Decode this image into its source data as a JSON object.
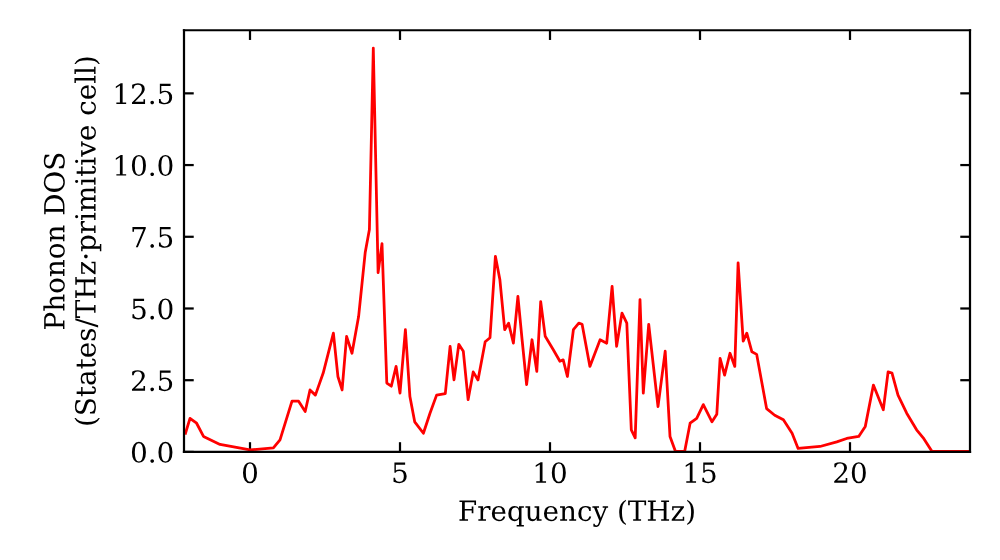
{
  "chart_data": {
    "type": "line",
    "xlabel": "Frequency (THz)",
    "ylabel": "Phonon DOS\n(States/THz·primitive cell)",
    "xlim": [
      -2.2,
      24
    ],
    "ylim": [
      0,
      14.7
    ],
    "xticks": [
      0,
      5,
      10,
      15,
      20
    ],
    "yticks": [
      {
        "value": 0,
        "label": "0.0"
      },
      2.5,
      {
        "value": 5,
        "label": "5.0"
      },
      7.5,
      {
        "value": 10,
        "label": "10.0"
      },
      12.5
    ],
    "grid": false,
    "series": [
      {
        "color": "#ff0000",
        "x": [
          -2.15,
          -2.0,
          -1.78,
          -1.55,
          -1.0,
          0,
          0.78,
          1.0,
          1.4,
          1.62,
          1.84,
          2.0,
          2.18,
          2.44,
          2.78,
          2.93,
          3.07,
          3.22,
          3.4,
          3.62,
          3.84,
          3.98,
          4.11,
          4.27,
          4.4,
          4.56,
          4.71,
          4.87,
          5.0,
          5.18,
          5.33,
          5.49,
          5.78,
          6.0,
          6.22,
          6.51,
          6.67,
          6.8,
          6.96,
          7.11,
          7.27,
          7.44,
          7.6,
          7.84,
          8.0,
          8.18,
          8.33,
          8.49,
          8.62,
          8.78,
          8.93,
          9.07,
          9.22,
          9.4,
          9.56,
          9.69,
          9.84,
          10.11,
          10.33,
          10.44,
          10.58,
          10.78,
          10.96,
          11.07,
          11.33,
          11.67,
          11.89,
          12.07,
          12.22,
          12.4,
          12.56,
          12.71,
          12.84,
          13.0,
          13.11,
          13.29,
          13.6,
          13.84,
          14.0,
          14.18,
          14.49,
          14.67,
          14.89,
          15.11,
          15.4,
          15.56,
          15.67,
          15.82,
          16.0,
          16.16,
          16.27,
          16.44,
          16.56,
          16.73,
          16.89,
          17.22,
          17.49,
          17.78,
          18.07,
          18.27,
          19.0,
          19.56,
          19.89,
          20.29,
          20.51,
          20.78,
          21.11,
          21.27,
          21.4,
          21.6,
          21.89,
          22.22,
          22.44,
          22.73,
          24.0
        ],
        "values": [
          0.65,
          1.17,
          1.0,
          0.54,
          0.26,
          0.07,
          0.14,
          0.42,
          1.77,
          1.77,
          1.41,
          2.16,
          1.98,
          2.75,
          4.14,
          2.63,
          2.16,
          4.03,
          3.44,
          4.72,
          6.95,
          7.75,
          14.08,
          6.25,
          7.26,
          2.4,
          2.29,
          2.98,
          2.05,
          4.26,
          1.93,
          1.05,
          0.65,
          1.35,
          1.98,
          2.03,
          3.68,
          2.51,
          3.75,
          3.51,
          1.82,
          2.79,
          2.51,
          3.84,
          3.98,
          6.82,
          6.0,
          4.26,
          4.49,
          3.79,
          5.42,
          3.91,
          2.35,
          3.91,
          2.81,
          5.24,
          4.03,
          3.56,
          3.16,
          3.21,
          2.63,
          4.26,
          4.49,
          4.45,
          2.98,
          3.91,
          3.79,
          5.77,
          3.68,
          4.84,
          4.49,
          0.77,
          0.49,
          5.31,
          2.05,
          4.45,
          1.58,
          3.51,
          0.54,
          0.02,
          0.02,
          1.0,
          1.17,
          1.65,
          1.05,
          1.31,
          3.26,
          2.68,
          3.44,
          2.98,
          6.59,
          3.86,
          4.14,
          3.49,
          3.4,
          1.51,
          1.28,
          1.12,
          0.65,
          0.12,
          0.19,
          0.35,
          0.47,
          0.54,
          0.89,
          2.33,
          1.47,
          2.79,
          2.75,
          1.98,
          1.35,
          0.77,
          0.49,
          0.02,
          0.02
        ]
      }
    ]
  }
}
